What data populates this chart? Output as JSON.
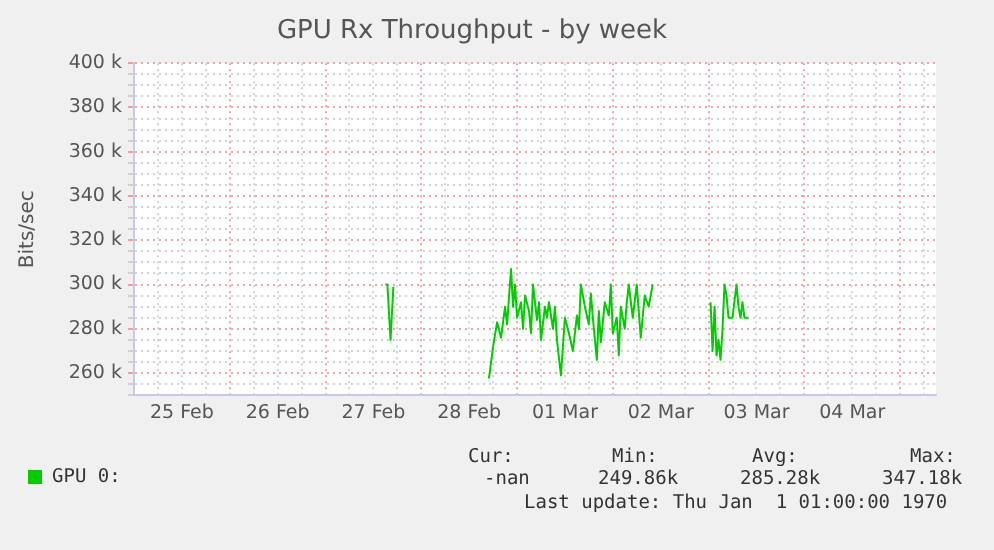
{
  "chart_data": {
    "type": "line",
    "title": "GPU Rx Throughput - by week",
    "ylabel": "Bits/sec",
    "xlim": [
      "--02-25",
      "--03-05T09:00"
    ],
    "ylim": [
      250000,
      400000
    ],
    "xticks": [
      {
        "value": "--02-25",
        "label": null
      },
      {
        "value": "--02-25T06:00",
        "label": null
      },
      {
        "value": "--02-25T12:00",
        "label": "25 Feb"
      },
      {
        "value": "--02-25T18:00",
        "label": null
      },
      {
        "value": "--02-26",
        "label": null
      },
      {
        "value": "--02-26T06:00",
        "label": null
      },
      {
        "value": "--02-26T12:00",
        "label": "26 Feb"
      },
      {
        "value": "--02-26T18:00",
        "label": null
      },
      {
        "value": "--02-27",
        "label": null
      },
      {
        "value": "--02-27T06:00",
        "label": null
      },
      {
        "value": "--02-27T12:00",
        "label": "27 Feb"
      },
      {
        "value": "--02-27T18:00",
        "label": null
      },
      {
        "value": "--02-28",
        "label": null
      },
      {
        "value": "--02-28T06:00",
        "label": null
      },
      {
        "value": "--02-28T12:00",
        "label": "28 Feb"
      },
      {
        "value": "--02-28T18:00",
        "label": null
      },
      {
        "value": "--03-01",
        "label": null
      },
      {
        "value": "--03-01T06:00",
        "label": null
      },
      {
        "value": "--03-01T12:00",
        "label": "01 Mar"
      },
      {
        "value": "--03-01T18:00",
        "label": null
      },
      {
        "value": "--03-02",
        "label": null
      },
      {
        "value": "--03-02T06:00",
        "label": null
      },
      {
        "value": "--03-02T12:00",
        "label": "02 Mar"
      },
      {
        "value": "--03-02T18:00",
        "label": null
      },
      {
        "value": "--03-03",
        "label": null
      },
      {
        "value": "--03-03T06:00",
        "label": null
      },
      {
        "value": "--03-03T12:00",
        "label": "03 Mar"
      },
      {
        "value": "--03-03T18:00",
        "label": null
      },
      {
        "value": "--03-04",
        "label": null
      },
      {
        "value": "--03-04T06:00",
        "label": null
      },
      {
        "value": "--03-04T12:00",
        "label": "04 Mar"
      },
      {
        "value": "--03-04T18:00",
        "label": null
      },
      {
        "value": "--03-05",
        "label": null
      },
      {
        "value": "--03-05T06:00",
        "label": null
      }
    ],
    "yticks": [
      {
        "value": 250000,
        "label": null
      },
      {
        "value": 255000,
        "label": null
      },
      {
        "value": 260000,
        "label": "260 k"
      },
      {
        "value": 265000,
        "label": null
      },
      {
        "value": 270000,
        "label": null
      },
      {
        "value": 275000,
        "label": null
      },
      {
        "value": 280000,
        "label": "280 k"
      },
      {
        "value": 285000,
        "label": null
      },
      {
        "value": 290000,
        "label": null
      },
      {
        "value": 295000,
        "label": null
      },
      {
        "value": 300000,
        "label": "300 k"
      },
      {
        "value": 305000,
        "label": null
      },
      {
        "value": 310000,
        "label": null
      },
      {
        "value": 315000,
        "label": null
      },
      {
        "value": 320000,
        "label": "320 k"
      },
      {
        "value": 325000,
        "label": null
      },
      {
        "value": 330000,
        "label": null
      },
      {
        "value": 335000,
        "label": null
      },
      {
        "value": 340000,
        "label": "340 k"
      },
      {
        "value": 345000,
        "label": null
      },
      {
        "value": 350000,
        "label": null
      },
      {
        "value": 355000,
        "label": null
      },
      {
        "value": 360000,
        "label": "360 k"
      },
      {
        "value": 365000,
        "label": null
      },
      {
        "value": 370000,
        "label": null
      },
      {
        "value": 375000,
        "label": null
      },
      {
        "value": 380000,
        "label": "380 k"
      },
      {
        "value": 385000,
        "label": null
      },
      {
        "value": 390000,
        "label": null
      },
      {
        "value": 395000,
        "label": null
      },
      {
        "value": 400000,
        "label": "400 k"
      }
    ],
    "grid": true,
    "legend": "bottom",
    "marker": "none",
    "line_style": "solid",
    "series": [
      {
        "name": "GPU 0:",
        "color": "#00cc00",
        "x": [
          "--02-27T15:00",
          "--02-27T15:30",
          "--02-27T16:18",
          "--02-27T17:00",
          "--02-28T04:00",
          "--02-28T16:42",
          "--02-28T17:00",
          "--02-28T18:00",
          "--02-28T19:00",
          "--02-28T20:00",
          "--02-28T21:00",
          "--02-28T21:30",
          "--02-28T22:30",
          "--02-28T23:00",
          "--02-28T23:30",
          "--03-01T00:00",
          "--03-01T01:00",
          "--03-01T01:30",
          "--03-01T02:00",
          "--03-01T03:00",
          "--03-01T03:30",
          "--03-01T04:00",
          "--03-01T05:00",
          "--03-01T05:30",
          "--03-01T06:00",
          "--03-01T07:00",
          "--03-01T07:30",
          "--03-01T08:00",
          "--03-01T09:00",
          "--03-01T09:30",
          "--03-01T10:00",
          "--03-01T11:00",
          "--03-01T12:00",
          "--03-01T13:00",
          "--03-01T14:00",
          "--03-01T15:00",
          "--03-01T15:30",
          "--03-01T16:00",
          "--03-01T17:00",
          "--03-01T18:00",
          "--03-01T18:30",
          "--03-01T19:00",
          "--03-01T20:00",
          "--03-01T20:30",
          "--03-01T21:00",
          "--03-01T22:00",
          "--03-01T23:00",
          "--03-01T23:30",
          "--03-02T00:00",
          "--03-02T01:00",
          "--03-02T01:30",
          "--03-02T02:00",
          "--03-02T03:00",
          "--03-02T03:30",
          "--03-02T04:00",
          "--03-02T05:00",
          "--03-02T06:00",
          "--03-02T07:00",
          "--03-02T08:00",
          "--03-02T09:00",
          "--03-02T10:00",
          "--03-02T17:00",
          "--03-03T00:30",
          "--03-03T01:00",
          "--03-03T01:30",
          "--03-03T02:00",
          "--03-03T02:30",
          "--03-03T03:00",
          "--03-03T03:30",
          "--03-03T04:00",
          "--03-03T04:30",
          "--03-03T05:00",
          "--03-03T06:00",
          "--03-03T07:00",
          "--03-03T07:30",
          "--03-03T08:00",
          "--03-03T08:30",
          "--03-03T09:00",
          "--03-03T10:00"
        ],
        "values": [
          300000,
          300000,
          275000,
          299000,
          null,
          258000,
          258000,
          272000,
          283000,
          276000,
          290000,
          282000,
          307000,
          290000,
          300000,
          285000,
          292000,
          280000,
          295000,
          288000,
          278000,
          300000,
          284000,
          292000,
          275000,
          290000,
          285000,
          292000,
          280000,
          290000,
          275000,
          259000,
          285000,
          278000,
          270000,
          286000,
          280000,
          300000,
          290000,
          282000,
          296000,
          285000,
          266000,
          288000,
          274000,
          292000,
          286000,
          300000,
          278000,
          285000,
          268000,
          290000,
          280000,
          292000,
          300000,
          285000,
          300000,
          276000,
          295000,
          290000,
          300000,
          null,
          292000,
          270000,
          290000,
          268000,
          275000,
          266000,
          280000,
          300000,
          295000,
          285000,
          285000,
          300000,
          290000,
          285000,
          292000,
          285000,
          285000
        ]
      }
    ],
    "annotations": [
      "Cur:",
      "Min:",
      "Avg:",
      "Max:",
      "-nan",
      "249.86k",
      "285.28k",
      "347.18k",
      "Last update: Thu Jan  1 01:00:00 1970"
    ]
  }
}
